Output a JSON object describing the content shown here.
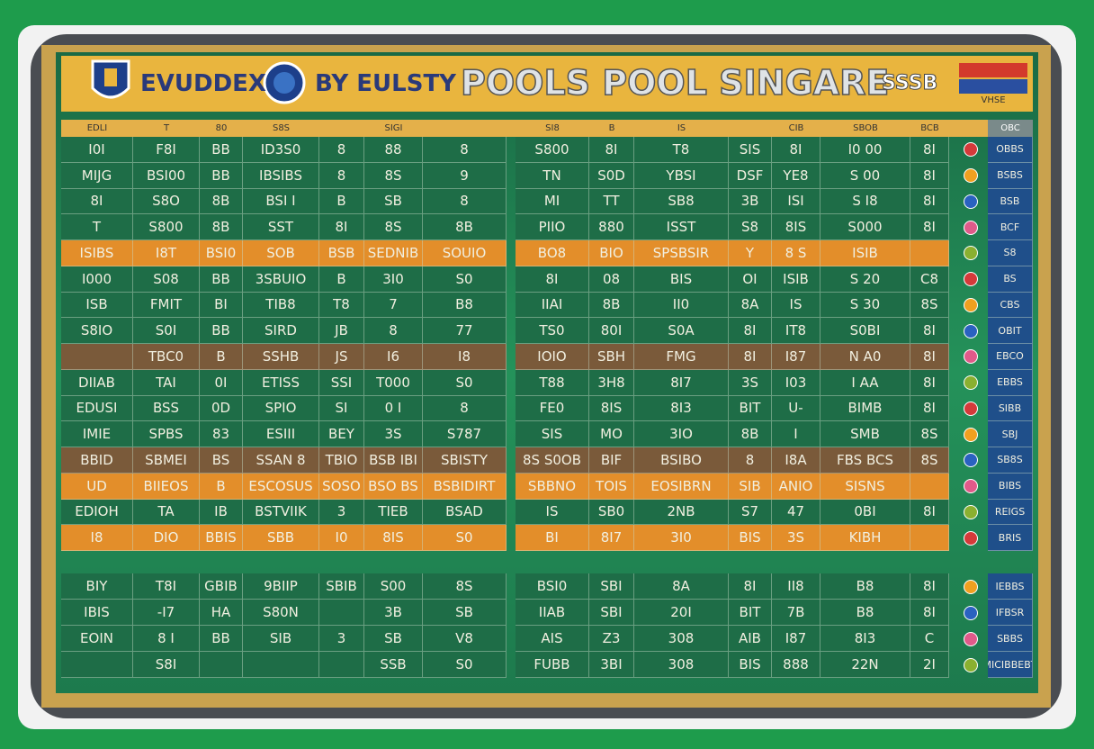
{
  "header": {
    "brand": "EVUDDEX",
    "byline": "BY EULSTY",
    "title": "POOLS POOL SINGARE",
    "badge": "SSSB",
    "flag_text": "VHSE"
  },
  "table": {
    "columns": [
      "EDLI",
      "T",
      "80",
      "S8S",
      null,
      "SIGI",
      null,
      "SI8",
      "B",
      "IS",
      null,
      "CIB",
      "SBOB",
      "BCB"
    ],
    "side_header": "OBC",
    "rows": [
      {
        "kind": "plain",
        "cells": [
          "I0I",
          "F8I",
          "BB",
          "ID3S0",
          "8",
          "88",
          "8",
          "S800",
          "8I",
          "T8",
          "SIS",
          "8I",
          "I0 00",
          "8I"
        ],
        "side": "OBBS"
      },
      {
        "kind": "plain",
        "cells": [
          "MIJG",
          "BSI00",
          "BB",
          "IBSIBS",
          "8",
          "8S",
          "9",
          "TN",
          "S0D",
          "YBSI",
          "DSF",
          "YE8",
          "S 00",
          "8I"
        ],
        "side": "BSBS"
      },
      {
        "kind": "plain",
        "cells": [
          "8I",
          "S8O",
          "8B",
          "BSI I",
          "B",
          "SB",
          "8",
          "MI",
          "TT",
          "SB8",
          "3B",
          "ISI",
          "S I8",
          "8I"
        ],
        "side": "BSB"
      },
      {
        "kind": "plain",
        "cells": [
          "T",
          "S800",
          "8B",
          "SST",
          "8I",
          "8S",
          "8B",
          "PIIO",
          "880",
          "ISST",
          "S8",
          "8IS",
          "S000",
          "8I"
        ],
        "side": "BCF"
      },
      {
        "kind": "orange",
        "cells": [
          "ISIBS",
          "I8T",
          "BSI0",
          "SOB",
          "BSB",
          "SEDNIB",
          "SOUIO",
          "BO8",
          "BIO",
          "SPSBSIR",
          "Y",
          "8 S",
          "ISIB",
          null
        ],
        "side": "S8"
      },
      {
        "kind": "plain",
        "cells": [
          "I000",
          "S08",
          "BB",
          "3SBUIO",
          "B",
          "3I0",
          "S0",
          "8I",
          "08",
          "BIS",
          "OI",
          "ISIB",
          "S 20",
          "C8"
        ],
        "side": "BS"
      },
      {
        "kind": "plain",
        "cells": [
          "ISB",
          "FMIT",
          "BI",
          "TIB8",
          "T8",
          "7",
          "B8",
          "IIAI",
          "8B",
          "II0",
          "8A",
          "IS",
          "S 30",
          "8S"
        ],
        "side": "CBS"
      },
      {
        "kind": "plain",
        "cells": [
          "S8IO",
          "S0I",
          "BB",
          "SIRD",
          "JB",
          "8",
          "77",
          "TS0",
          "80I",
          "S0A",
          "8I",
          "IT8",
          "S0BI",
          "8I"
        ],
        "side": "OBIT"
      },
      {
        "kind": "brown",
        "cells": [
          null,
          "TBC0",
          "B",
          "SSHB",
          "JS",
          "I6",
          "I8",
          "IOIO",
          "SBH",
          "FMG",
          "8I",
          "I87",
          "N A0",
          "8I"
        ],
        "side": "EBCO"
      },
      {
        "kind": "plain",
        "cells": [
          "DIIAB",
          "TAI",
          "0I",
          "ETISS",
          "SSI",
          "T000",
          "S0",
          "T88",
          "3H8",
          "8I7",
          "3S",
          "I03",
          "I AA",
          "8I"
        ],
        "side": "EBBS"
      },
      {
        "kind": "plain",
        "cells": [
          "EDUSI",
          "BSS",
          "0D",
          "SPIO",
          "SI",
          "0 I",
          "8",
          "FE0",
          "8IS",
          "8I3",
          "BIT",
          "U-",
          "BIMB",
          "8I"
        ],
        "side": "SIBB"
      },
      {
        "kind": "plain",
        "cells": [
          "IMIE",
          "SPBS",
          "83",
          "ESIII",
          "BEY",
          "3S",
          "S787",
          "SIS",
          "MO",
          "3IO",
          "8B",
          "I",
          "SMB",
          "8S"
        ],
        "side": "SBJ"
      },
      {
        "kind": "brown",
        "cells": [
          "BBID",
          "SBMEI",
          "BS",
          "SSAN 8",
          "TBIO",
          "BSB IBI",
          "SBISTY",
          "8S S0OB",
          "BIF",
          "BSIBO",
          "8",
          "I8A",
          "FBS BCS",
          "8S"
        ],
        "side": "SB8S"
      },
      {
        "kind": "orange",
        "cells": [
          "UD",
          "BIIEOS",
          "B",
          "ESCOSUS",
          "SOSO",
          "BSO BS",
          "BSBIDIRT",
          "SBBNO",
          "TOIS",
          "EOSIBRN",
          "SIB",
          "ANIO",
          "SISNS",
          null
        ],
        "side": "BIBS"
      },
      {
        "kind": "plain",
        "cells": [
          "EDIOH",
          "TA",
          "IB",
          "BSTVIIK",
          "3",
          "TIEB",
          "BSAD",
          "IS",
          "SB0",
          "2NB",
          "S7",
          "47",
          "0BI",
          "8I"
        ],
        "side": "REIGS"
      },
      {
        "kind": "orange",
        "cells": [
          "I8",
          "DIO",
          "BBIS",
          "SBB",
          "I0",
          "8IS",
          "S0",
          "BI",
          "8I7",
          "3I0",
          "BIS",
          "3S",
          "KIBH",
          null
        ],
        "side": "BRIS"
      },
      {
        "kind": "plain",
        "cells": [
          "BIY",
          "T8I",
          "GBIB",
          "9BIIP",
          "SBIB",
          "S00",
          "8S",
          "BSI0",
          "SBI",
          "8A",
          "8I",
          "II8",
          "B8",
          "8I"
        ],
        "side": "IEBBS"
      },
      {
        "kind": "plain",
        "cells": [
          "IBIS",
          "-I7",
          "HA",
          "S80N",
          null,
          "3B",
          "SB",
          "IIAB",
          "SBI",
          "20I",
          "BIT",
          "7B",
          "B8",
          "8I"
        ],
        "side": "IFBSR"
      },
      {
        "kind": "plain",
        "cells": [
          "EOIN",
          "8 I",
          "BB",
          "SIB",
          "3",
          "SB",
          "V8",
          "AIS",
          "Z3",
          "308",
          "AIB",
          "I87",
          "8I3",
          "C"
        ],
        "side": "SBBS"
      },
      {
        "kind": "plain",
        "cells": [
          null,
          "S8I",
          null,
          null,
          null,
          "SSB",
          "S0",
          "FUBB",
          "3BI",
          "308",
          "BIS",
          "888",
          "22N",
          "2I"
        ],
        "side": "MICIBBEBT"
      }
    ]
  }
}
